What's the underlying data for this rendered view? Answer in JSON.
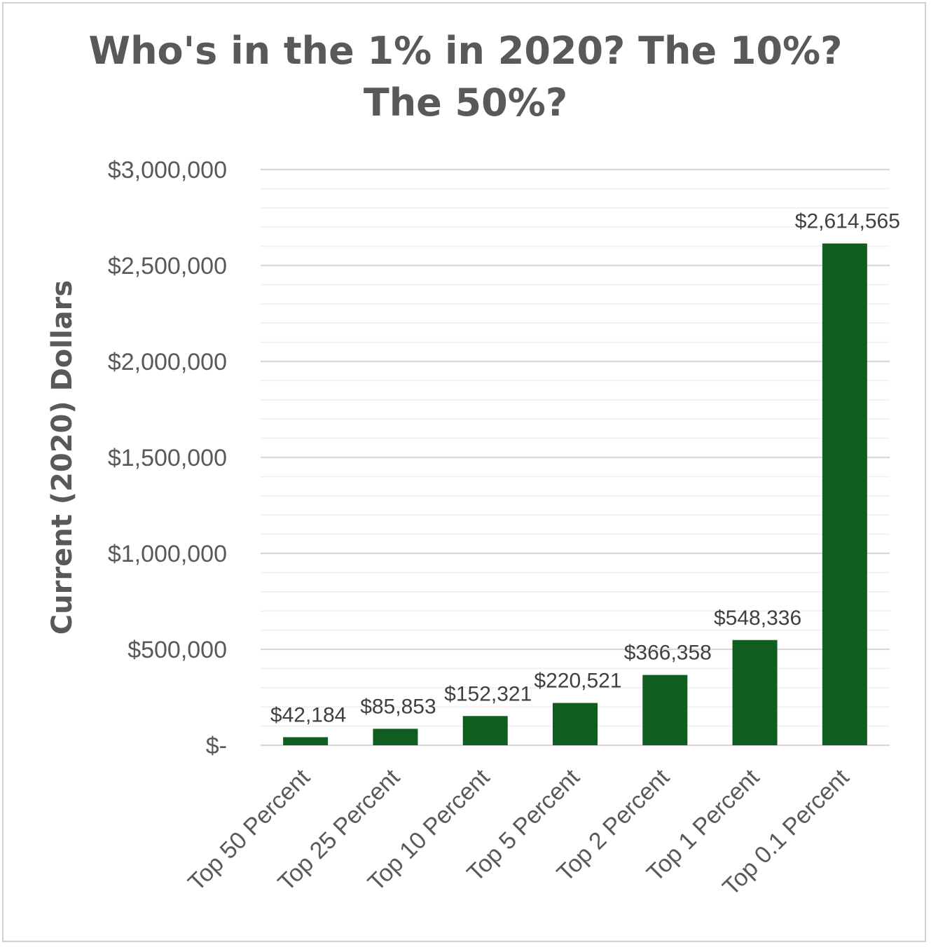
{
  "chart_data": {
    "type": "bar",
    "title": "Who's in the 1% in 2020? The 10%? The 50%?",
    "title_lines": [
      "Who's in the 1% in 2020? The 10%?",
      "The 50%?"
    ],
    "xlabel": "",
    "ylabel": "Current (2020) Dollars",
    "categories": [
      "Top 50 Percent",
      "Top 25 Percent",
      "Top 10 Percent",
      "Top 5 Percent",
      "Top 2 Percent",
      "Top 1 Percent",
      "Top 0.1 Percent"
    ],
    "values": [
      42184,
      85853,
      152321,
      220521,
      366358,
      548336,
      2614565
    ],
    "data_labels": [
      "$42,184",
      "$85,853",
      "$152,321",
      "$220,521",
      "$366,358",
      "$548,336",
      "$2,614,565"
    ],
    "ylim": [
      0,
      3000000
    ],
    "yticks": [
      0,
      500000,
      1000000,
      1500000,
      2000000,
      2500000,
      3000000
    ],
    "ytick_labels": [
      "$-",
      "$500,000",
      "$1,000,000",
      "$1,500,000",
      "$2,000,000",
      "$2,500,000",
      "$3,000,000"
    ],
    "minor_tick_step": 100000,
    "grid": true,
    "legend": "none",
    "bar_color": "#0f5e1f",
    "major_grid_color": "#d9d9d9",
    "minor_grid_color": "#efefef"
  }
}
